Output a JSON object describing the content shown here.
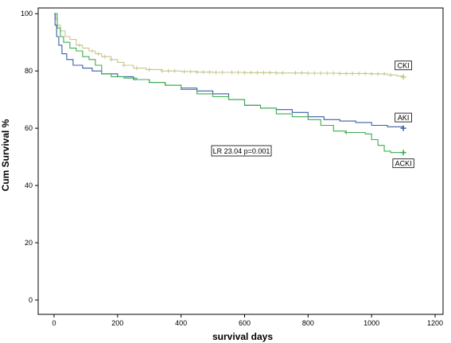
{
  "chart_data": {
    "type": "line",
    "xlabel": "survival days",
    "ylabel": "Cum Survival %",
    "xlim": [
      -50,
      1225
    ],
    "ylim": [
      -5,
      102
    ],
    "xticks": [
      0,
      200,
      400,
      600,
      800,
      1000,
      1200
    ],
    "yticks": [
      0,
      20,
      40,
      60,
      80,
      100
    ],
    "grid": false,
    "annotation": "LR 23.04 p=0.001",
    "series": [
      {
        "name": "CKI",
        "color": "#c8c68f",
        "points": [
          [
            0,
            100
          ],
          [
            5,
            98
          ],
          [
            10,
            96
          ],
          [
            20,
            94
          ],
          [
            35,
            92
          ],
          [
            50,
            91
          ],
          [
            70,
            89
          ],
          [
            90,
            88
          ],
          [
            110,
            87
          ],
          [
            130,
            86
          ],
          [
            150,
            85
          ],
          [
            180,
            84
          ],
          [
            200,
            83
          ],
          [
            220,
            82
          ],
          [
            250,
            81
          ],
          [
            290,
            80.5
          ],
          [
            340,
            80
          ],
          [
            400,
            79.8
          ],
          [
            450,
            79.6
          ],
          [
            500,
            79.5
          ],
          [
            600,
            79.4
          ],
          [
            700,
            79.3
          ],
          [
            800,
            79.2
          ],
          [
            900,
            79.1
          ],
          [
            1000,
            79
          ],
          [
            1050,
            78.6
          ],
          [
            1080,
            78.2
          ],
          [
            1100,
            77.9
          ]
        ],
        "censor_marks": [
          80,
          120,
          140,
          160,
          180,
          220,
          260,
          300,
          340,
          360,
          380,
          410,
          430,
          450,
          470,
          490,
          510,
          530,
          560,
          580,
          600,
          620,
          640,
          660,
          680,
          700,
          720,
          760,
          780,
          800,
          820,
          840,
          860,
          880,
          900,
          920,
          940,
          960,
          980,
          1000,
          1020,
          1040,
          1060,
          1100
        ]
      },
      {
        "name": "AKI",
        "color": "#3c5da8",
        "points": [
          [
            0,
            100
          ],
          [
            3,
            96
          ],
          [
            8,
            92
          ],
          [
            15,
            89
          ],
          [
            25,
            86
          ],
          [
            40,
            84
          ],
          [
            60,
            82
          ],
          [
            90,
            81
          ],
          [
            120,
            80
          ],
          [
            150,
            79
          ],
          [
            200,
            78
          ],
          [
            250,
            77
          ],
          [
            300,
            76
          ],
          [
            350,
            75
          ],
          [
            400,
            74
          ],
          [
            450,
            73
          ],
          [
            500,
            72
          ],
          [
            550,
            70
          ],
          [
            600,
            68
          ],
          [
            650,
            67
          ],
          [
            700,
            66.5
          ],
          [
            750,
            65.5
          ],
          [
            800,
            64
          ],
          [
            850,
            63
          ],
          [
            900,
            62.5
          ],
          [
            950,
            62
          ],
          [
            1000,
            61
          ],
          [
            1050,
            60.5
          ],
          [
            1100,
            60
          ]
        ],
        "censor_marks": [
          1100
        ]
      },
      {
        "name": "ACKI",
        "color": "#3cad4f",
        "points": [
          [
            0,
            100
          ],
          [
            10,
            95
          ],
          [
            20,
            92
          ],
          [
            30,
            90
          ],
          [
            50,
            88
          ],
          [
            70,
            87
          ],
          [
            90,
            85
          ],
          [
            110,
            84
          ],
          [
            130,
            82
          ],
          [
            150,
            79
          ],
          [
            180,
            78
          ],
          [
            220,
            77.5
          ],
          [
            260,
            77
          ],
          [
            300,
            76
          ],
          [
            350,
            75
          ],
          [
            400,
            73.5
          ],
          [
            450,
            72
          ],
          [
            500,
            71
          ],
          [
            550,
            70
          ],
          [
            600,
            68
          ],
          [
            650,
            67
          ],
          [
            700,
            65
          ],
          [
            750,
            64
          ],
          [
            800,
            63
          ],
          [
            840,
            61
          ],
          [
            880,
            59
          ],
          [
            920,
            58.5
          ],
          [
            980,
            58
          ],
          [
            1000,
            56
          ],
          [
            1020,
            54
          ],
          [
            1040,
            52
          ],
          [
            1060,
            51.5
          ],
          [
            1100,
            51.5
          ]
        ],
        "censor_marks": [
          920,
          1100
        ]
      }
    ]
  }
}
